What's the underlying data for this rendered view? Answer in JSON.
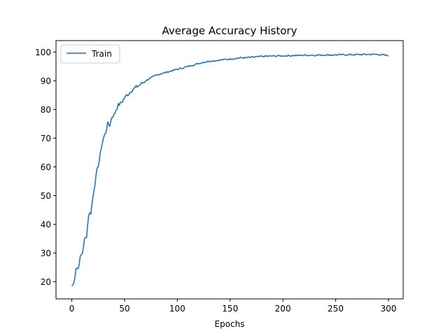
{
  "chart_data": {
    "type": "line",
    "title": "Average Accuracy History",
    "xlabel": "Epochs",
    "ylabel": "",
    "xlim": [
      -15,
      314
    ],
    "ylim": [
      14,
      104
    ],
    "xticks": [
      0,
      50,
      100,
      150,
      200,
      250,
      300
    ],
    "yticks": [
      20,
      30,
      40,
      50,
      60,
      70,
      80,
      90,
      100
    ],
    "grid": false,
    "legend_position": "upper-left",
    "series": [
      {
        "name": "Train",
        "color": "#1f77b4",
        "x": [
          0,
          2,
          4,
          6,
          8,
          10,
          12,
          14,
          16,
          18,
          20,
          22,
          24,
          26,
          28,
          30,
          32,
          34,
          36,
          38,
          40,
          42,
          44,
          46,
          48,
          50,
          52,
          54,
          56,
          58,
          60,
          62,
          64,
          66,
          68,
          70,
          75,
          80,
          85,
          90,
          95,
          100,
          105,
          110,
          115,
          120,
          125,
          130,
          135,
          140,
          145,
          150,
          155,
          160,
          165,
          170,
          175,
          180,
          190,
          200,
          210,
          220,
          230,
          240,
          250,
          260,
          270,
          280,
          290,
          295,
          300
        ],
        "y": [
          18.5,
          19.5,
          25.0,
          24.5,
          28.5,
          30.0,
          34.5,
          36.0,
          43.5,
          44.0,
          49.5,
          54.5,
          59.0,
          62.0,
          67.0,
          70.0,
          72.0,
          75.0,
          74.5,
          77.5,
          78.0,
          80.0,
          81.5,
          82.0,
          83.0,
          84.0,
          85.0,
          85.5,
          86.5,
          87.0,
          87.5,
          88.0,
          88.5,
          89.0,
          89.5,
          90.0,
          91.0,
          92.0,
          92.5,
          93.0,
          93.5,
          94.0,
          94.5,
          95.0,
          95.5,
          96.0,
          96.5,
          96.8,
          97.0,
          97.2,
          97.4,
          97.6,
          97.8,
          98.0,
          98.0,
          98.2,
          98.3,
          98.5,
          98.6,
          98.7,
          98.8,
          98.9,
          98.9,
          99.0,
          99.0,
          99.1,
          99.1,
          99.2,
          99.2,
          99.0,
          98.7
        ]
      }
    ]
  }
}
